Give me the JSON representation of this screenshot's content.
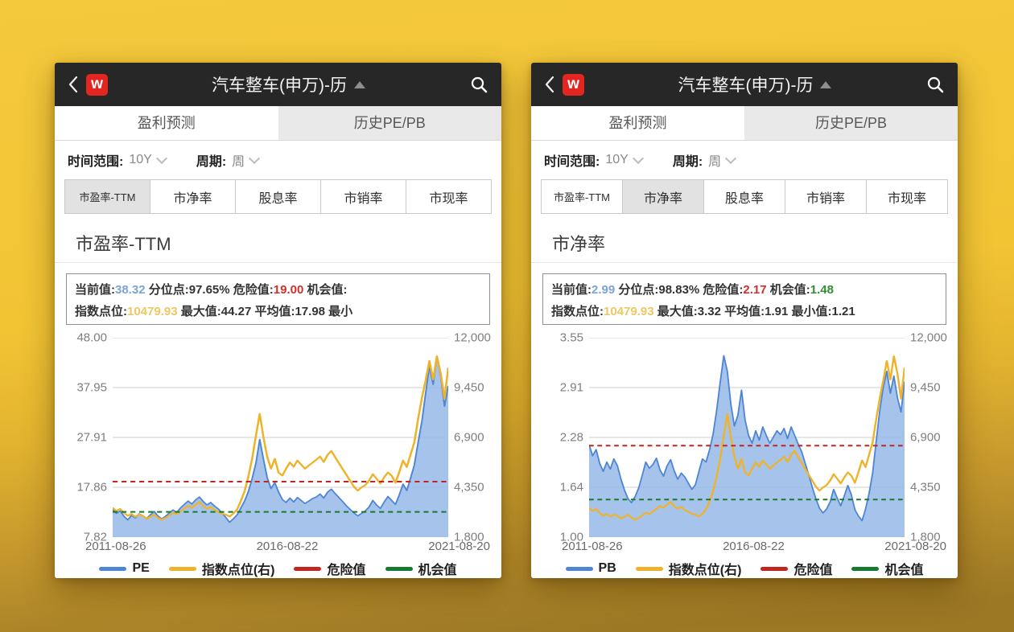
{
  "colors": {
    "background_gold": "#F2C434",
    "brand_red": "#E3261F",
    "header_dark": "#272727",
    "pe_blue": "#4E86D3",
    "area_blue": "#A9C6EC",
    "index_orange": "#EFB32B",
    "danger_red": "#C2251F",
    "opportunity_green": "#157A2D",
    "current_value_blue": "#7CA5D2",
    "index_value_gold": "#EFC75E"
  },
  "panels": [
    {
      "header": {
        "back_icon": "chevron-left",
        "logo_letter": "w",
        "title": "汽车整车(申万)-历",
        "dropdown_icon": "triangle-up",
        "search_icon": "magnifier"
      },
      "top_tabs": [
        {
          "label": "盈利预测",
          "selected": false
        },
        {
          "label": "历史PE/PB",
          "selected": true
        }
      ],
      "filters": {
        "range_label": "时间范围:",
        "range_value": "10Y",
        "period_label": "周期:",
        "period_value": "周"
      },
      "metric_tabs": [
        {
          "label": "市盈率-TTM",
          "selected": true
        },
        {
          "label": "市净率",
          "selected": false
        },
        {
          "label": "股息率",
          "selected": false
        },
        {
          "label": "市销率",
          "selected": false
        },
        {
          "label": "市现率",
          "selected": false
        }
      ],
      "section_title": "市盈率-TTM",
      "info_lines": [
        [
          {
            "t": "当前值:",
            "c": "#333333"
          },
          {
            "t": "38.32",
            "c": "#7CA5D2"
          },
          {
            "t": " 分位点:",
            "c": "#333333"
          },
          {
            "t": "97.65%",
            "c": "#333333"
          },
          {
            "t": " 危险值:",
            "c": "#333333"
          },
          {
            "t": "19.00",
            "c": "#D2302C"
          },
          {
            "t": " 机会值:",
            "c": "#333333"
          }
        ],
        [
          {
            "t": "指数点位:",
            "c": "#333333"
          },
          {
            "t": "10479.93",
            "c": "#EFC75E"
          },
          {
            "t": " 最大值:",
            "c": "#333333"
          },
          {
            "t": "44.27",
            "c": "#333333"
          },
          {
            "t": " 平均值:",
            "c": "#333333"
          },
          {
            "t": "17.98",
            "c": "#333333"
          },
          {
            "t": " 最小",
            "c": "#333333"
          }
        ]
      ],
      "chart_data": {
        "type": "area",
        "title": "市盈率-TTM",
        "left_ticks": [
          "48.00",
          "37.95",
          "27.91",
          "17.86",
          "7.82"
        ],
        "right_ticks": [
          "12,000",
          "9,450",
          "6,900",
          "4,350",
          "1,800"
        ],
        "x_labels": [
          "2011-08-26",
          "2016-08-22",
          "2021-08-20"
        ],
        "left_min": 7.82,
        "left_max": 48.0,
        "right_min": 1800,
        "right_max": 12000,
        "danger_value": 19.0,
        "opportunity_value": 12.9,
        "danger_color": "#C2251F",
        "opportunity_color": "#157A2D",
        "area_fill": "rgba(150,185,233,0.85)",
        "series": [
          {
            "name": "PE",
            "axis": "left",
            "color": "#4E86D3",
            "values": [
              13.4,
              12.6,
              13.1,
              12.0,
              11.3,
              12.2,
              11.7,
              12.5,
              12.1,
              11.6,
              12.3,
              13.0,
              12.1,
              11.5,
              12.0,
              12.7,
              13.3,
              12.8,
              13.7,
              14.4,
              15.1,
              14.5,
              15.3,
              15.9,
              15.0,
              14.3,
              14.8,
              14.1,
              13.5,
              12.7,
              11.8,
              10.8,
              11.5,
              12.3,
              13.7,
              15.1,
              17.0,
              19.6,
              22.8,
              27.5,
              23.5,
              19.8,
              17.6,
              18.8,
              16.9,
              15.4,
              14.8,
              15.7,
              14.9,
              15.8,
              15.2,
              14.6,
              15.1,
              15.6,
              15.9,
              16.5,
              15.7,
              16.9,
              17.5,
              16.6,
              15.8,
              15.0,
              14.1,
              13.4,
              12.7,
              12.1,
              12.6,
              13.1,
              13.9,
              15.2,
              14.3,
              13.6,
              14.9,
              16.0,
              15.2,
              14.4,
              16.3,
              18.5,
              17.2,
              19.7,
              22.3,
              26.8,
              31.2,
              36.8,
              42.3,
              38.6,
              44.27,
              40.3,
              34.2,
              38.32
            ]
          },
          {
            "name": "指数点位(右)",
            "axis": "right",
            "color": "#EFB32B",
            "values": [
              3300,
              3140,
              3240,
              3040,
              2890,
              2990,
              2840,
              2950,
              2890,
              2740,
              2850,
              2950,
              2790,
              2690,
              2780,
              2900,
              3050,
              2980,
              3110,
              3260,
              3400,
              3300,
              3460,
              3600,
              3380,
              3250,
              3350,
              3190,
              3090,
              3000,
              2950,
              2850,
              3010,
              3210,
              3650,
              4150,
              4900,
              5800,
              7000,
              8100,
              6900,
              5900,
              5300,
              5800,
              5100,
              4950,
              5300,
              5620,
              5400,
              5720,
              5510,
              5300,
              5460,
              5610,
              5760,
              5920,
              5640,
              6010,
              6210,
              5890,
              5590,
              5280,
              4980,
              4680,
              4380,
              4180,
              4340,
              4460,
              4700,
              5020,
              4790,
              4540,
              4860,
              5110,
              4940,
              4580,
              5120,
              5720,
              5380,
              6020,
              6640,
              7820,
              8920,
              9820,
              10810,
              9860,
              11050,
              10150,
              8880,
              10479.93
            ]
          }
        ]
      },
      "legend": [
        {
          "label": "PE",
          "color": "#4E86D3"
        },
        {
          "label": "指数点位(右)",
          "color": "#EFB32B"
        },
        {
          "label": "危险值",
          "color": "#C2251F"
        },
        {
          "label": "机会值",
          "color": "#157A2D"
        }
      ]
    },
    {
      "header": {
        "back_icon": "chevron-left",
        "logo_letter": "w",
        "title": "汽车整车(申万)-历",
        "dropdown_icon": "triangle-up",
        "search_icon": "magnifier"
      },
      "top_tabs": [
        {
          "label": "盈利预测",
          "selected": false
        },
        {
          "label": "历史PE/PB",
          "selected": true
        }
      ],
      "filters": {
        "range_label": "时间范围:",
        "range_value": "10Y",
        "period_label": "周期:",
        "period_value": "周"
      },
      "metric_tabs": [
        {
          "label": "市盈率-TTM",
          "selected": false
        },
        {
          "label": "市净率",
          "selected": true
        },
        {
          "label": "股息率",
          "selected": false
        },
        {
          "label": "市销率",
          "selected": false
        },
        {
          "label": "市现率",
          "selected": false
        }
      ],
      "section_title": "市净率",
      "info_lines": [
        [
          {
            "t": "当前值:",
            "c": "#333333"
          },
          {
            "t": "2.99",
            "c": "#7CA5D2"
          },
          {
            "t": " 分位点:",
            "c": "#333333"
          },
          {
            "t": "98.83%",
            "c": "#333333"
          },
          {
            "t": " 危险值:",
            "c": "#333333"
          },
          {
            "t": "2.17",
            "c": "#D2302C"
          },
          {
            "t": " 机会值:",
            "c": "#333333"
          },
          {
            "t": "1.48",
            "c": "#2F8F33"
          }
        ],
        [
          {
            "t": "指数点位:",
            "c": "#333333"
          },
          {
            "t": "10479.93",
            "c": "#EFC75E"
          },
          {
            "t": " 最大值:",
            "c": "#333333"
          },
          {
            "t": "3.32",
            "c": "#333333"
          },
          {
            "t": " 平均值:",
            "c": "#333333"
          },
          {
            "t": "1.91",
            "c": "#333333"
          },
          {
            "t": " 最小值:",
            "c": "#333333"
          },
          {
            "t": "1.21",
            "c": "#333333"
          }
        ]
      ],
      "chart_data": {
        "type": "area",
        "title": "市净率",
        "left_ticks": [
          "3.55",
          "2.91",
          "2.28",
          "1.64",
          "1.00"
        ],
        "right_ticks": [
          "12,000",
          "9,450",
          "6,900",
          "4,350",
          "1,800"
        ],
        "x_labels": [
          "2011-08-26",
          "2016-08-22",
          "2021-08-20"
        ],
        "left_min": 1.0,
        "left_max": 3.55,
        "right_min": 1800,
        "right_max": 12000,
        "danger_value": 2.17,
        "opportunity_value": 1.48,
        "danger_color": "#C2251F",
        "opportunity_color": "#157A2D",
        "area_fill": "rgba(150,185,233,0.85)",
        "series": [
          {
            "name": "PB",
            "axis": "left",
            "color": "#4E86D3",
            "values": [
              2.18,
              2.04,
              2.12,
              1.94,
              1.84,
              1.96,
              1.87,
              2.0,
              1.91,
              1.74,
              1.6,
              1.49,
              1.44,
              1.52,
              1.63,
              1.79,
              1.96,
              1.88,
              1.93,
              2.01,
              1.86,
              1.78,
              1.91,
              1.99,
              1.85,
              1.74,
              1.82,
              1.77,
              1.69,
              1.61,
              1.67,
              1.84,
              2.0,
              1.96,
              2.12,
              2.32,
              2.62,
              2.98,
              3.32,
              3.12,
              2.7,
              2.42,
              2.56,
              2.88,
              2.5,
              2.3,
              2.2,
              2.36,
              2.24,
              2.41,
              2.3,
              2.2,
              2.28,
              2.36,
              2.31,
              2.39,
              2.26,
              2.41,
              2.3,
              2.19,
              2.09,
              1.94,
              1.79,
              1.63,
              1.49,
              1.37,
              1.31,
              1.36,
              1.45,
              1.61,
              1.5,
              1.4,
              1.53,
              1.66,
              1.54,
              1.35,
              1.27,
              1.21,
              1.36,
              1.56,
              1.82,
              2.22,
              2.62,
              2.92,
              3.12,
              2.84,
              3.06,
              2.78,
              2.6,
              2.99
            ]
          },
          {
            "name": "指数点位(右)",
            "axis": "right",
            "color": "#EFB32B",
            "values": [
              3300,
              3140,
              3240,
              3040,
              2890,
              2990,
              2840,
              2950,
              2890,
              2740,
              2850,
              2950,
              2790,
              2690,
              2780,
              2900,
              3050,
              2980,
              3110,
              3260,
              3400,
              3300,
              3460,
              3600,
              3380,
              3250,
              3350,
              3190,
              3090,
              3000,
              2950,
              2850,
              3010,
              3210,
              3650,
              4150,
              4900,
              5800,
              7000,
              8100,
              6900,
              5900,
              5300,
              5800,
              5100,
              4950,
              5300,
              5620,
              5400,
              5720,
              5510,
              5300,
              5460,
              5610,
              5760,
              5920,
              5640,
              6010,
              6210,
              5890,
              5590,
              5280,
              4980,
              4680,
              4380,
              4180,
              4340,
              4460,
              4700,
              5020,
              4790,
              4540,
              4860,
              5110,
              4940,
              4580,
              5120,
              5720,
              5380,
              6020,
              6640,
              7820,
              8920,
              9820,
              10810,
              9860,
              11050,
              10150,
              8880,
              10479.93
            ]
          }
        ]
      },
      "legend": [
        {
          "label": "PB",
          "color": "#4E86D3"
        },
        {
          "label": "指数点位(右)",
          "color": "#EFB32B"
        },
        {
          "label": "危险值",
          "color": "#C2251F"
        },
        {
          "label": "机会值",
          "color": "#157A2D"
        }
      ]
    }
  ]
}
